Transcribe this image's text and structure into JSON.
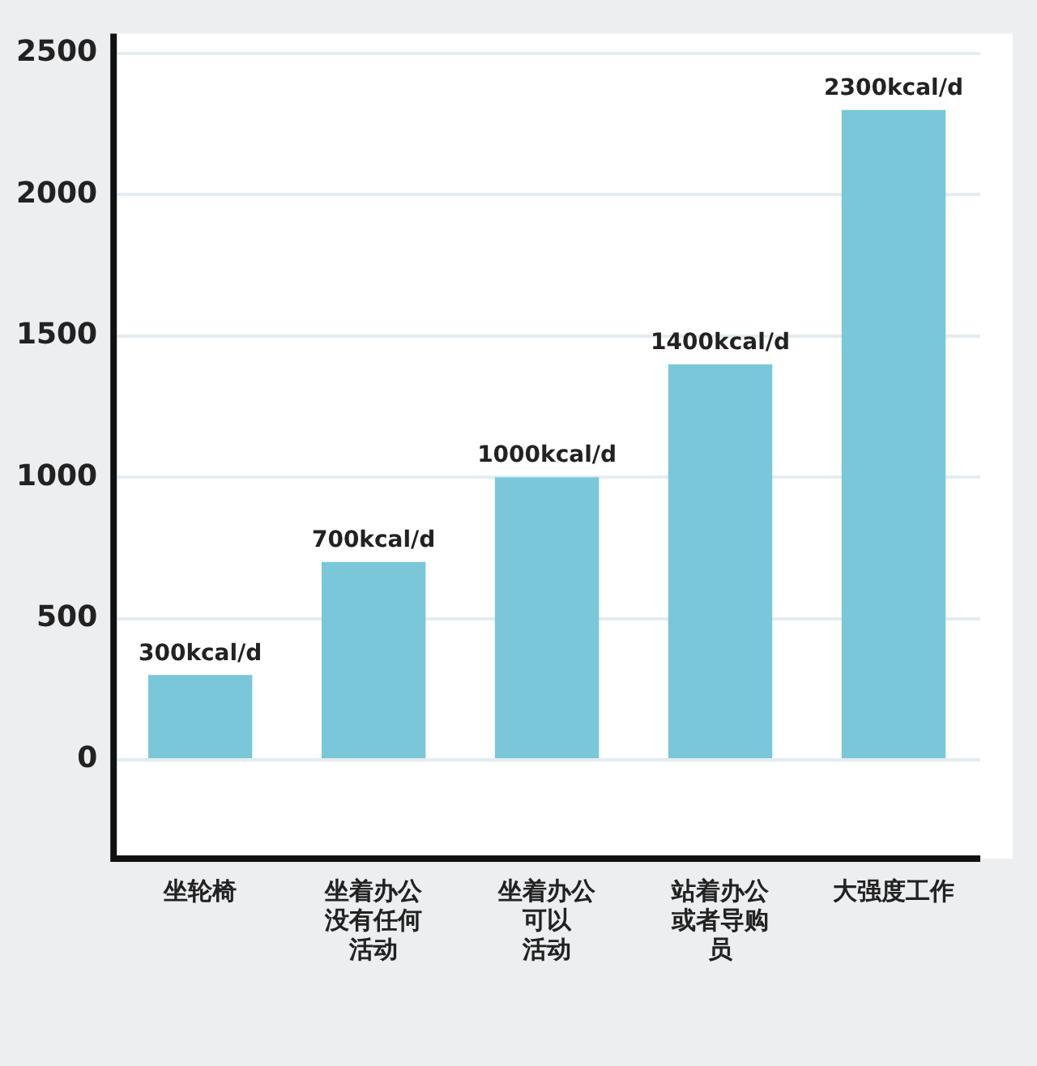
{
  "chart_data": {
    "type": "bar",
    "categories": [
      "坐轮椅",
      "坐着办公没有任何活动",
      "坐着办公可以活动",
      "站着办公或者导购员",
      "大强度工作"
    ],
    "values": [
      300,
      700,
      1000,
      1400,
      2300
    ],
    "value_labels": [
      "300kcal/d",
      "700kcal/d",
      "1000kcal/d",
      "1400kcal/d",
      "2300kcal/d"
    ],
    "color": "#79c7d8",
    "ylim": [
      -350,
      2570
    ],
    "yticks": [
      0,
      500,
      1000,
      1500,
      2000,
      2500
    ],
    "grid": "y"
  }
}
